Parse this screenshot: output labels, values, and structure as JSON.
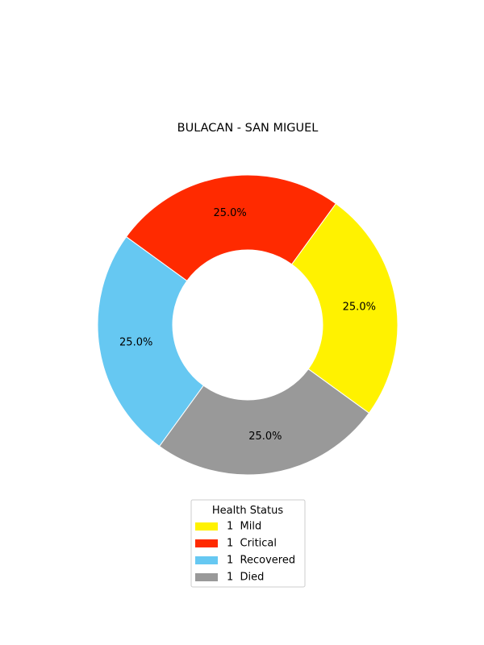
{
  "chart_data": {
    "type": "pie",
    "title": "BULACAN - SAN MIGUEL",
    "donut": true,
    "categories": [
      "1  Mild",
      "1  Critical",
      "1  Recovered",
      "1  Died"
    ],
    "values": [
      1,
      1,
      1,
      1
    ],
    "percent_labels": [
      "25.0%",
      "25.0%",
      "25.0%",
      "25.0%"
    ],
    "colors": [
      "#fff200",
      "#ff2a00",
      "#66c8f2",
      "#999999"
    ],
    "start_angle_deg": -36,
    "direction": "counterclockwise",
    "legend": {
      "title": "Health Status",
      "placement": "bottom-center",
      "entries": [
        "1  Mild",
        "1  Critical",
        "1  Recovered",
        "1  Died"
      ]
    }
  }
}
